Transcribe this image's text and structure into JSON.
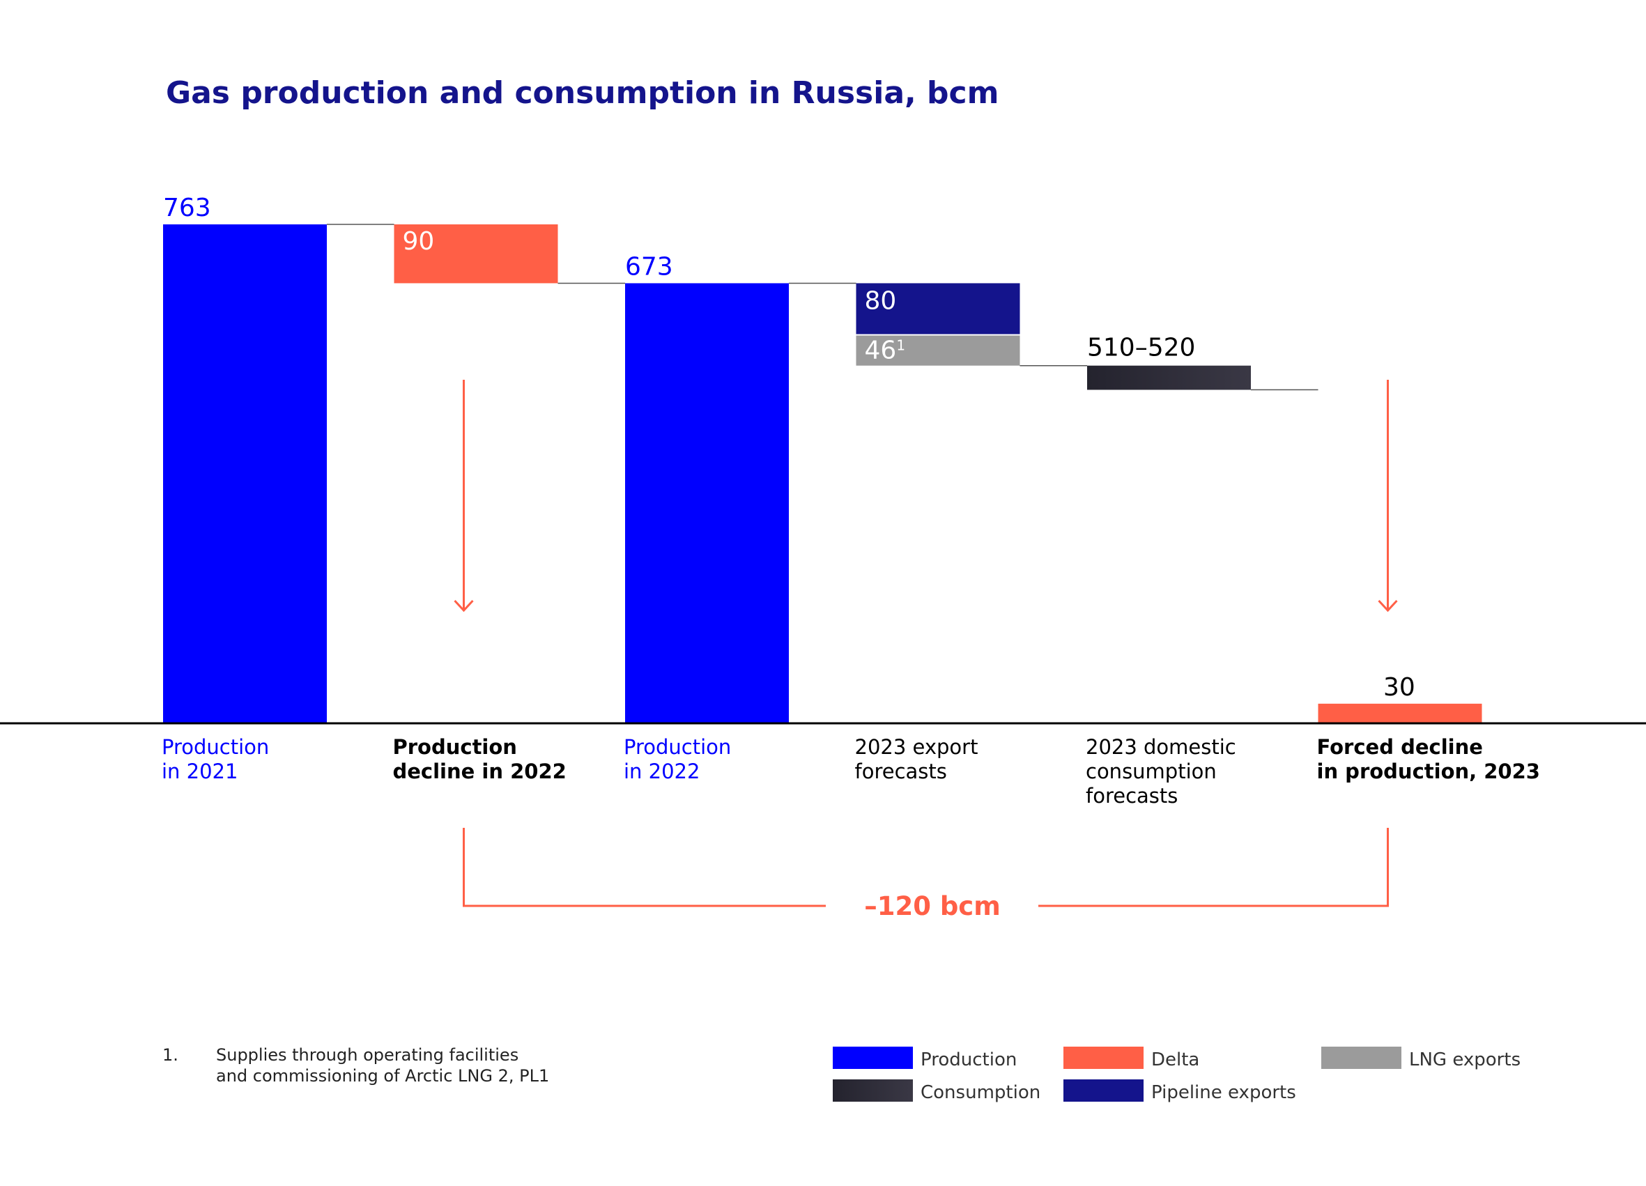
{
  "chart_data": {
    "type": "waterfall",
    "title": "Gas production and consumption in Russia, bcm",
    "unit": "bcm",
    "colors": {
      "production": "#0000ff",
      "delta": "#ff5f46",
      "pipeline": "#14148c",
      "lng": "#9b9b9b",
      "consumption_start": "#24232e",
      "consumption_end": "#3a3845",
      "axis": "#000000",
      "connector": "#555555"
    },
    "bars": [
      {
        "category": "Production in 2021",
        "label_lines": [
          "Production",
          "in 2021"
        ],
        "value": 763,
        "value_label": "763",
        "kind": "production",
        "label_color": "#0000ff",
        "bold": false
      },
      {
        "category": "Production decline in 2022",
        "label_lines": [
          "Production",
          "decline in 2022"
        ],
        "value": 90,
        "value_label": "90",
        "kind": "delta",
        "label_color": "#000000",
        "bold": true
      },
      {
        "category": "Production in 2022",
        "label_lines": [
          "Production",
          "in 2022"
        ],
        "value": 673,
        "value_label": "673",
        "kind": "production",
        "label_color": "#0000ff",
        "bold": false
      },
      {
        "category": "2023 export forecasts",
        "label_lines": [
          "2023 export",
          "forecasts"
        ],
        "kind": "exports",
        "label_color": "#000000",
        "bold": false,
        "segments": [
          {
            "name": "Pipeline exports",
            "value": 80,
            "value_label": "80"
          },
          {
            "name": "LNG exports",
            "value": 46,
            "value_label": "46",
            "footnote_mark": "1"
          }
        ]
      },
      {
        "category": "2023 domestic consumption forecasts",
        "label_lines": [
          "2023 domestic",
          "consumption",
          "forecasts"
        ],
        "value": 510,
        "value_label": "510–520",
        "kind": "consumption",
        "label_color": "#000000",
        "bold": false
      },
      {
        "category": "Forced decline in production, 2023",
        "label_lines": [
          "Forced decline",
          "in production, 2023"
        ],
        "value": 30,
        "value_label": "30",
        "kind": "delta",
        "label_color": "#000000",
        "bold": true
      }
    ],
    "total_annotation": "–120 bcm",
    "legend": [
      {
        "name": "Production",
        "kind": "production"
      },
      {
        "name": "Consumption",
        "kind": "consumption"
      },
      {
        "name": "Delta",
        "kind": "delta"
      },
      {
        "name": "Pipeline exports",
        "kind": "pipeline"
      },
      {
        "name": "LNG exports",
        "kind": "lng"
      }
    ],
    "footnote": {
      "number": "1.",
      "lines": [
        "Supplies through operating facilities",
        "and commissioning of Arctic LNG 2, PL1"
      ]
    }
  }
}
